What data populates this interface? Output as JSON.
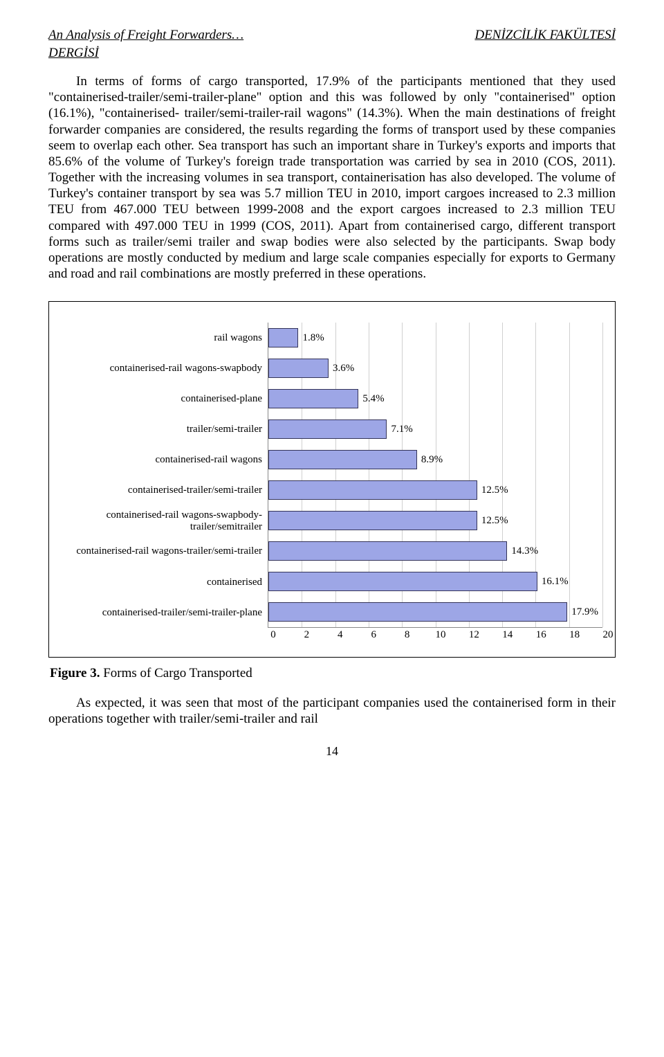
{
  "header": {
    "left": "An Analysis of Freight Forwarders…",
    "right": "DENİZCİLİK FAKÜLTESİ",
    "sub": "DERGİSİ"
  },
  "paragraph1": "In terms of forms of cargo transported, 17.9% of the participants mentioned that they used \"containerised-trailer/semi-trailer-plane\" option and this was followed by only \"containerised\" option (16.1%), \"containerised- trailer/semi-trailer-rail wagons\" (14.3%). When the main destinations of freight forwarder companies are considered, the results regarding the forms of transport used by these companies seem to overlap each other. Sea transport has such an important share in Turkey's exports and imports that 85.6% of the volume of Turkey's foreign trade transportation was carried by sea in 2010 (COS, 2011).  Together with the increasing volumes in sea transport, containerisation has also developed. The volume of Turkey's container transport by sea was 5.7 million TEU in 2010, import cargoes increased to 2.3 million TEU from 467.000 TEU between 1999-2008 and the export cargoes increased to 2.3 million TEU compared with 497.000 TEU in 1999 (COS, 2011). Apart from containerised cargo, different transport forms such as trailer/semi trailer and swap bodies were also selected by the participants. Swap body operations are mostly conducted by medium and large scale companies especially for exports to Germany and road and rail combinations are mostly preferred in these operations.",
  "chart": {
    "type": "bar-horizontal",
    "xmax": 20,
    "xtick_step": 2,
    "xticks": [
      "0",
      "2",
      "4",
      "6",
      "8",
      "10",
      "12",
      "14",
      "16",
      "18",
      "20"
    ],
    "bar_color": "#9da6e6",
    "bar_border": "#333358",
    "grid_color": "#d0d0d0",
    "axis_color": "#888888",
    "label_fontsize": 15,
    "rows": [
      {
        "label": "rail wagons",
        "value": 1.8,
        "text": "1.8%"
      },
      {
        "label": "containerised-rail wagons-swapbody",
        "value": 3.6,
        "text": "3.6%"
      },
      {
        "label": "containerised-plane",
        "value": 5.4,
        "text": "5.4%"
      },
      {
        "label": "trailer/semi-trailer",
        "value": 7.1,
        "text": "7.1%"
      },
      {
        "label": "containerised-rail wagons",
        "value": 8.9,
        "text": "8.9%"
      },
      {
        "label": "containerised-trailer/semi-trailer",
        "value": 12.5,
        "text": "12.5%"
      },
      {
        "label": "containerised-rail wagons-swapbody-trailer/semitrailer",
        "value": 12.5,
        "text": "12.5%"
      },
      {
        "label": "containerised-rail wagons-trailer/semi-trailer",
        "value": 14.3,
        "text": "14.3%"
      },
      {
        "label": "containerised",
        "value": 16.1,
        "text": "16.1%"
      },
      {
        "label": "containerised-trailer/semi-trailer-plane",
        "value": 17.9,
        "text": "17.9%"
      }
    ]
  },
  "figure_caption_bold": "Figure 3.",
  "figure_caption_rest": " Forms of Cargo Transported",
  "paragraph2": "As expected, it was seen that most of the participant companies used the containerised form in their operations together with trailer/semi-trailer and rail",
  "page_number": "14"
}
